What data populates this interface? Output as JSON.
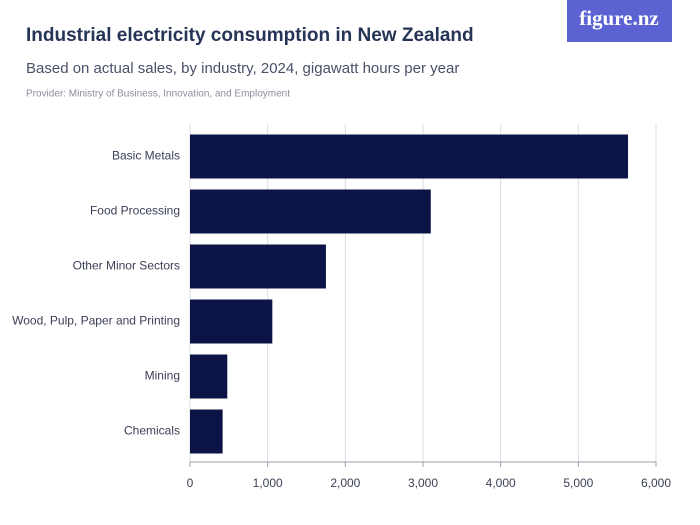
{
  "logo": "figure.nz",
  "chart_data": {
    "type": "bar",
    "orientation": "horizontal",
    "title": "Industrial electricity consumption in New Zealand",
    "subtitle": "Based on actual sales, by industry, 2024, gigawatt hours per year",
    "source": "Provider: Ministry of Business, Innovation, and Employment",
    "categories": [
      "Basic Metals",
      "Food Processing",
      "Other Minor Sectors",
      "Wood, Pulp, Paper and Printing",
      "Mining",
      "Chemicals"
    ],
    "values": [
      5640,
      3100,
      1750,
      1060,
      480,
      420
    ],
    "color": "#0c1446",
    "xlim": [
      0,
      6000
    ],
    "xticks": [
      0,
      {
        "value": 1000,
        "label": "1,000"
      },
      {
        "value": 2000,
        "label": "2,000"
      },
      {
        "value": 3000,
        "label": "3,000"
      },
      {
        "value": 4000,
        "label": "4,000"
      },
      {
        "value": 5000,
        "label": "5,000"
      },
      {
        "value": 6000,
        "label": "6,000"
      }
    ],
    "grid": true
  }
}
